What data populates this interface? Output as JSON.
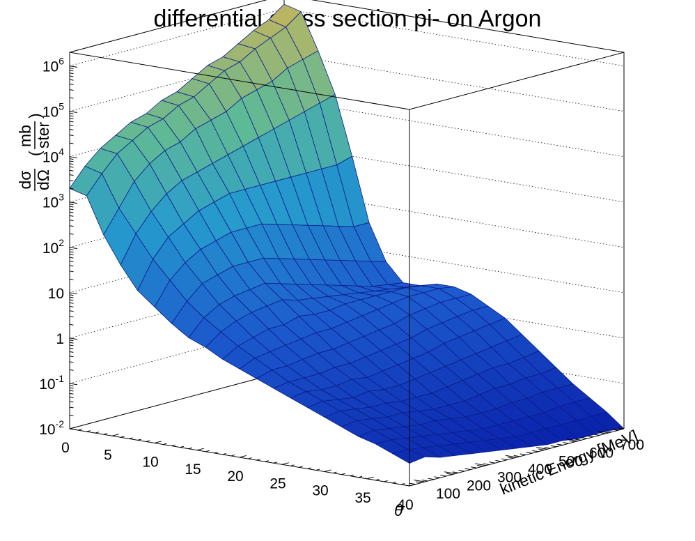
{
  "chart_data": {
    "type": "surface",
    "title": "differential cross section pi- on Argon",
    "xlabel": "θ",
    "ylabel": "kinetic Energy [MeV]",
    "zlabel": {
      "numerator": "dσ",
      "denominator": "dΩ",
      "unit_numerator": "mb",
      "unit_denominator": "ster"
    },
    "x_ticks": [
      "0",
      "5",
      "10",
      "15",
      "20",
      "25",
      "30",
      "35",
      "40"
    ],
    "y_ticks": [
      "100",
      "200",
      "300",
      "400",
      "500",
      "600",
      "700"
    ],
    "z_ticks": [
      {
        "base": "10",
        "exp": "-2"
      },
      {
        "base": "10",
        "exp": "-1"
      },
      {
        "base": "1",
        "exp": ""
      },
      {
        "base": "10",
        "exp": ""
      },
      {
        "base": "10",
        "exp": "2"
      },
      {
        "base": "10",
        "exp": "3"
      },
      {
        "base": "10",
        "exp": "4"
      },
      {
        "base": "10",
        "exp": "5"
      },
      {
        "base": "10",
        "exp": "6"
      }
    ],
    "xlim": [
      0,
      40
    ],
    "ylim": [
      50,
      750
    ],
    "zlim": [
      0.01,
      2000000
    ],
    "z_scale": "log",
    "grid": true,
    "theta": [
      0,
      2,
      4,
      6,
      8,
      10,
      12,
      14,
      16,
      18,
      20,
      22,
      24,
      26,
      28,
      30,
      32,
      34,
      36,
      38,
      40
    ],
    "energy": [
      50,
      100,
      150,
      200,
      250,
      300,
      350,
      400,
      450,
      500,
      550,
      600,
      650,
      700,
      750
    ],
    "log10_xsec": [
      [
        3.3,
        3.2,
        2.4,
        1.8,
        1.3,
        1.0,
        0.7,
        0.45,
        0.3,
        0.1,
        -0.05,
        -0.2,
        -0.35,
        -0.5,
        -0.65,
        -0.8,
        -0.95,
        -1.1,
        -1.2,
        -1.35,
        -1.5
      ],
      [
        3.7,
        3.6,
        2.9,
        2.4,
        1.9,
        1.5,
        1.1,
        0.8,
        0.55,
        0.3,
        0.1,
        -0.1,
        -0.3,
        -0.45,
        -0.6,
        -0.75,
        -0.9,
        -1.05,
        -1.2,
        -1.35,
        -1.45
      ],
      [
        4.0,
        3.95,
        3.4,
        2.8,
        2.3,
        1.8,
        1.4,
        1.0,
        0.7,
        0.4,
        0.15,
        -0.1,
        -0.3,
        -0.5,
        -0.65,
        -0.8,
        -0.95,
        -1.1,
        -1.25,
        -1.4,
        -1.55
      ],
      [
        4.2,
        4.15,
        3.7,
        3.1,
        2.5,
        2.0,
        1.5,
        1.1,
        0.8,
        0.5,
        0.2,
        -0.05,
        -0.3,
        -0.5,
        -0.7,
        -0.85,
        -1.0,
        -1.15,
        -1.3,
        -1.45,
        -1.6
      ],
      [
        4.4,
        4.35,
        3.9,
        3.3,
        2.7,
        2.1,
        1.6,
        1.15,
        0.85,
        0.5,
        0.25,
        0.0,
        -0.25,
        -0.45,
        -0.65,
        -0.85,
        -1.0,
        -1.2,
        -1.35,
        -1.5,
        -1.65
      ],
      [
        4.5,
        4.45,
        4.0,
        3.4,
        2.8,
        2.2,
        1.6,
        1.2,
        0.9,
        0.6,
        0.3,
        0.0,
        -0.25,
        -0.5,
        -0.7,
        -0.9,
        -1.05,
        -1.2,
        -1.4,
        -1.55,
        -1.7
      ],
      [
        4.7,
        4.65,
        4.2,
        3.5,
        2.9,
        2.2,
        1.6,
        1.1,
        0.8,
        0.55,
        0.3,
        0.05,
        -0.2,
        -0.45,
        -0.7,
        -0.9,
        -1.1,
        -1.25,
        -1.45,
        -1.6,
        -1.75
      ],
      [
        4.8,
        4.75,
        4.3,
        3.6,
        2.9,
        2.2,
        1.5,
        1.0,
        0.75,
        0.55,
        0.35,
        0.1,
        -0.15,
        -0.4,
        -0.65,
        -0.9,
        -1.1,
        -1.3,
        -1.5,
        -1.65,
        -1.8
      ],
      [
        5.0,
        4.95,
        4.4,
        3.7,
        2.9,
        2.1,
        1.4,
        0.9,
        0.7,
        0.6,
        0.4,
        0.15,
        -0.1,
        -0.35,
        -0.6,
        -0.85,
        -1.1,
        -1.3,
        -1.5,
        -1.7,
        -1.85
      ],
      [
        5.2,
        5.15,
        4.6,
        3.8,
        2.9,
        2.0,
        1.3,
        0.8,
        0.65,
        0.6,
        0.45,
        0.2,
        -0.05,
        -0.3,
        -0.55,
        -0.8,
        -1.05,
        -1.3,
        -1.5,
        -1.7,
        -1.9
      ],
      [
        5.3,
        5.25,
        4.7,
        3.9,
        2.9,
        1.9,
        1.2,
        0.7,
        0.6,
        0.6,
        0.5,
        0.3,
        0.05,
        -0.2,
        -0.5,
        -0.75,
        -1.0,
        -1.25,
        -1.5,
        -1.7,
        -1.9
      ],
      [
        5.5,
        5.45,
        4.8,
        4.0,
        2.9,
        1.8,
        1.1,
        0.6,
        0.55,
        0.6,
        0.55,
        0.35,
        0.1,
        -0.15,
        -0.45,
        -0.7,
        -1.0,
        -1.25,
        -1.5,
        -1.7,
        -1.95
      ],
      [
        5.7,
        5.6,
        5.0,
        4.1,
        2.9,
        1.7,
        1.0,
        0.5,
        0.5,
        0.6,
        0.55,
        0.4,
        0.15,
        -0.1,
        -0.4,
        -0.7,
        -0.95,
        -1.2,
        -1.45,
        -1.7,
        -1.95
      ],
      [
        5.85,
        5.75,
        5.1,
        4.2,
        2.9,
        1.6,
        0.9,
        0.45,
        0.45,
        0.55,
        0.55,
        0.4,
        0.2,
        -0.05,
        -0.35,
        -0.65,
        -0.95,
        -1.2,
        -1.45,
        -1.7,
        -1.95
      ],
      [
        6.1,
        6.0,
        5.2,
        4.3,
        3.0,
        1.6,
        0.8,
        0.4,
        0.4,
        0.5,
        0.5,
        0.4,
        0.2,
        0.0,
        -0.3,
        -0.6,
        -0.9,
        -1.2,
        -1.45,
        -1.7,
        -2.0
      ]
    ]
  }
}
